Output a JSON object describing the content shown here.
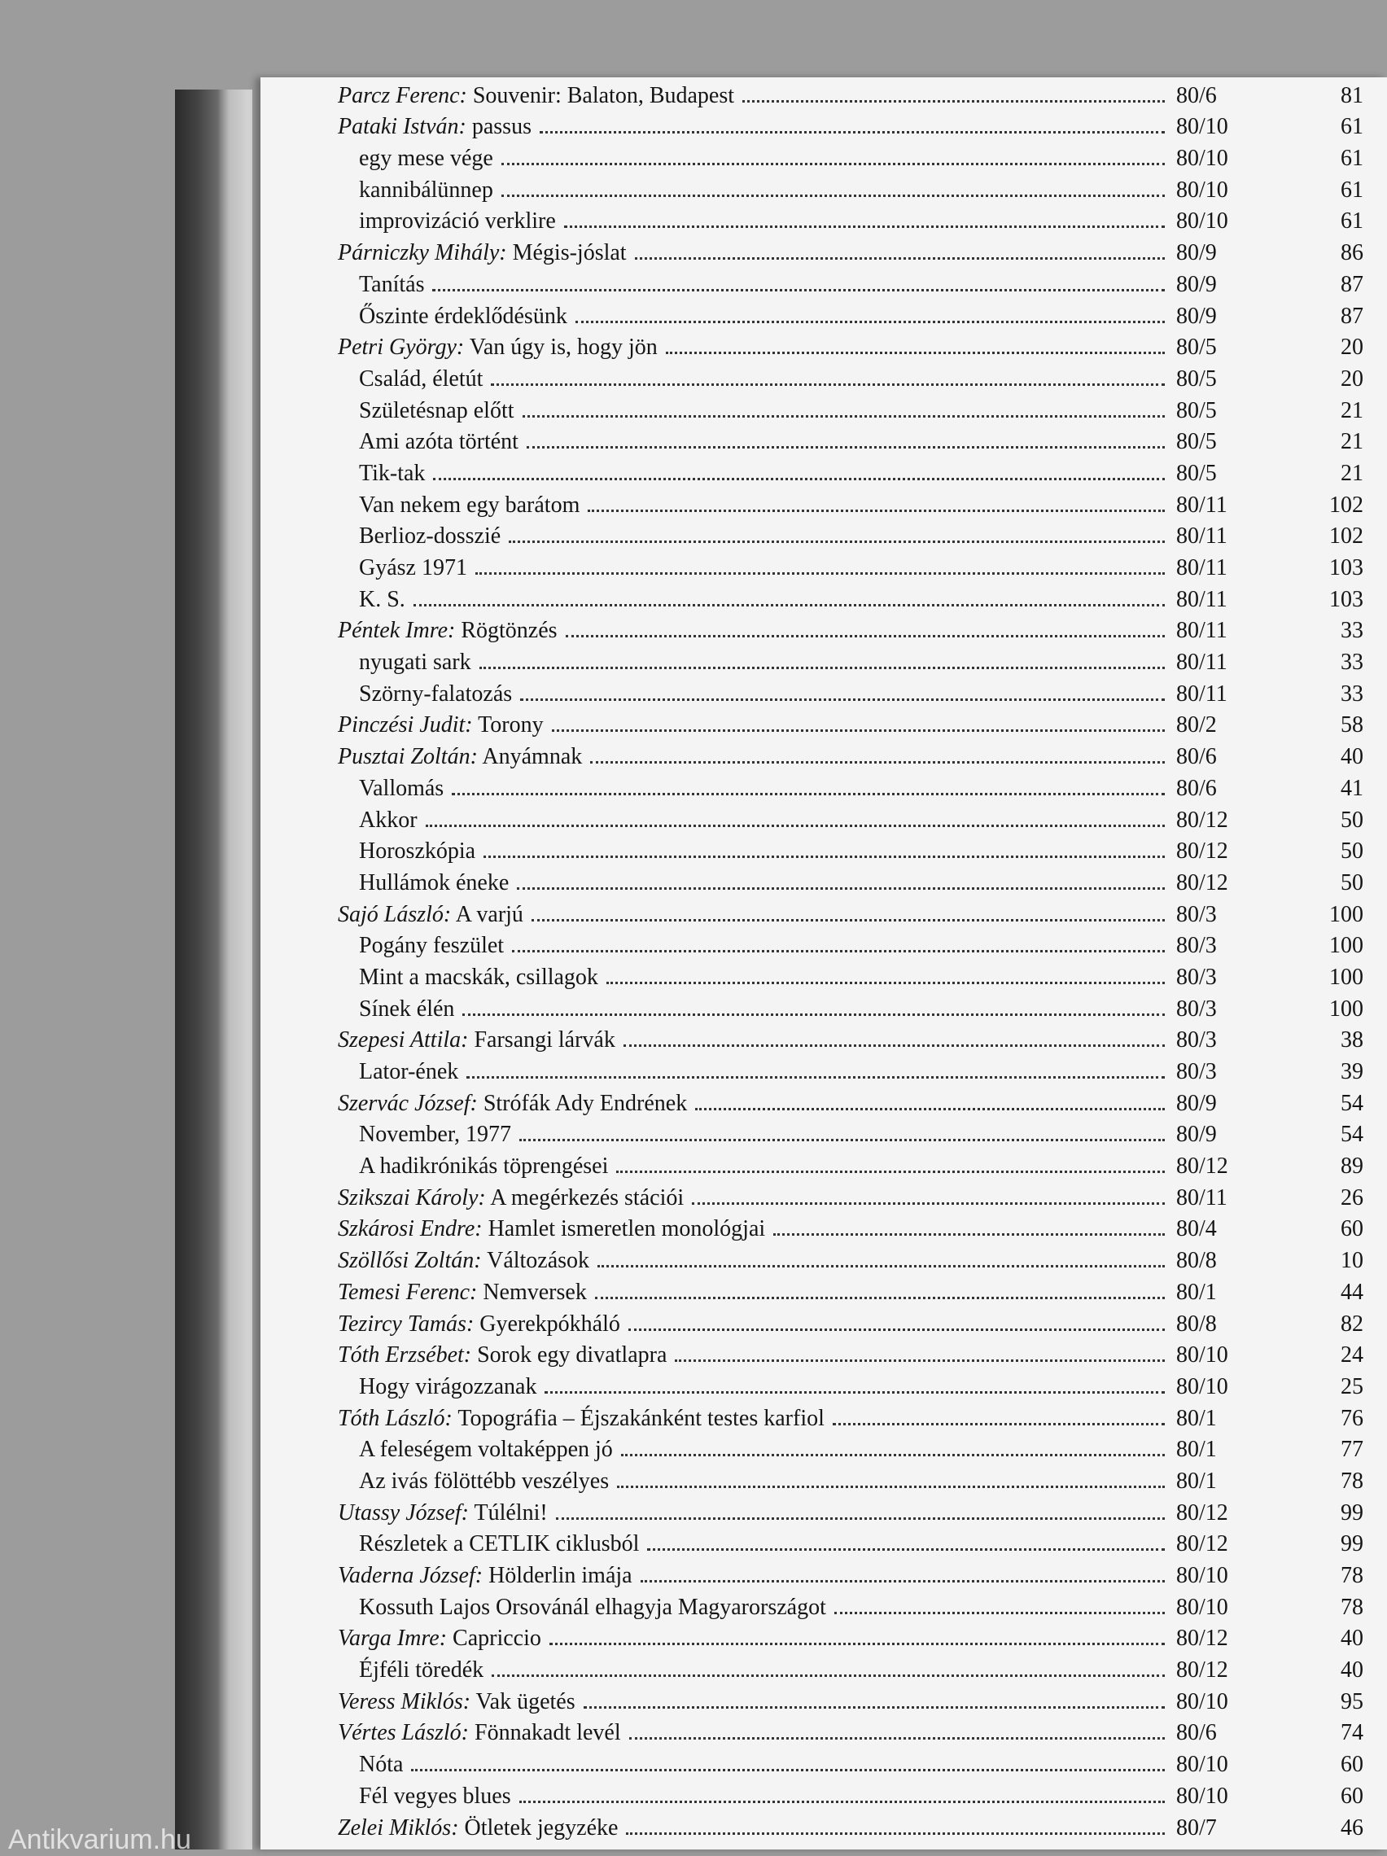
{
  "entries": [
    {
      "author": "Parcz Ferenc:",
      "title": "Souvenir: Balaton, Budapest",
      "issue": "80/6",
      "page": 81
    },
    {
      "author": "Pataki István:",
      "title": "passus",
      "issue": "80/10",
      "page": 61
    },
    {
      "title": "egy mese vége",
      "issue": "80/10",
      "page": 61
    },
    {
      "title": "kannibálünnep",
      "issue": "80/10",
      "page": 61
    },
    {
      "title": "improvizáció verklire",
      "issue": "80/10",
      "page": 61
    },
    {
      "author": "Párniczky Mihály:",
      "title": "Mégis-jóslat",
      "issue": "80/9",
      "page": 86
    },
    {
      "title": "Tanítás",
      "issue": "80/9",
      "page": 87
    },
    {
      "title": "Őszinte érdeklődésünk",
      "issue": "80/9",
      "page": 87
    },
    {
      "author": "Petri György:",
      "title": "Van úgy is, hogy jön",
      "issue": "80/5",
      "page": 20
    },
    {
      "title": "Család, életút",
      "issue": "80/5",
      "page": 20
    },
    {
      "title": "Születésnap előtt",
      "issue": "80/5",
      "page": 21
    },
    {
      "title": "Ami azóta történt",
      "issue": "80/5",
      "page": 21
    },
    {
      "title": "Tik-tak",
      "issue": "80/5",
      "page": 21
    },
    {
      "title": "Van nekem egy barátom",
      "issue": "80/11",
      "page": 102
    },
    {
      "title": "Berlioz-dosszié",
      "issue": "80/11",
      "page": 102
    },
    {
      "title": "Gyász 1971",
      "issue": "80/11",
      "page": 103
    },
    {
      "title": "K. S.",
      "issue": "80/11",
      "page": 103
    },
    {
      "author": "Péntek Imre:",
      "title": "Rögtönzés",
      "issue": "80/11",
      "page": 33
    },
    {
      "title": "nyugati sark",
      "issue": "80/11",
      "page": 33
    },
    {
      "title": "Szörny-falatozás",
      "issue": "80/11",
      "page": 33
    },
    {
      "author": "Pinczési Judit:",
      "title": "Torony",
      "issue": "80/2",
      "page": 58
    },
    {
      "author": "Pusztai Zoltán:",
      "title": "Anyámnak",
      "issue": "80/6",
      "page": 40
    },
    {
      "title": "Vallomás",
      "issue": "80/6",
      "page": 41
    },
    {
      "title": "Akkor",
      "issue": "80/12",
      "page": 50
    },
    {
      "title": "Horoszkópia",
      "issue": "80/12",
      "page": 50
    },
    {
      "title": "Hullámok éneke",
      "issue": "80/12",
      "page": 50
    },
    {
      "author": "Sajó László:",
      "title": "A varjú",
      "issue": "80/3",
      "page": 100
    },
    {
      "title": "Pogány feszület",
      "issue": "80/3",
      "page": 100
    },
    {
      "title": "Mint a macskák, csillagok",
      "issue": "80/3",
      "page": 100
    },
    {
      "title": "Sínek élén",
      "issue": "80/3",
      "page": 100
    },
    {
      "author": "Szepesi Attila:",
      "title": "Farsangi lárvák",
      "issue": "80/3",
      "page": 38
    },
    {
      "title": "Lator-ének",
      "issue": "80/3",
      "page": 39
    },
    {
      "author": "Szervác József:",
      "title": "Strófák Ady Endrének",
      "issue": "80/9",
      "page": 54
    },
    {
      "title": "November, 1977",
      "issue": "80/9",
      "page": 54
    },
    {
      "title": "A hadikrónikás töprengései",
      "issue": "80/12",
      "page": 89
    },
    {
      "author": "Szikszai Károly:",
      "title": "A megérkezés stációi",
      "issue": "80/11",
      "page": 26
    },
    {
      "author": "Szkárosi Endre:",
      "title": "Hamlet ismeretlen monológjai",
      "issue": "80/4",
      "page": 60
    },
    {
      "author": "Szöllősi Zoltán:",
      "title": "Változások",
      "issue": "80/8",
      "page": 10
    },
    {
      "author": "Temesi Ferenc:",
      "title": "Nemversek",
      "issue": "80/1",
      "page": 44
    },
    {
      "author": "Tezircy Tamás:",
      "title": "Gyerekpókháló",
      "issue": "80/8",
      "page": 82
    },
    {
      "author": "Tóth Erzsébet:",
      "title": "Sorok egy divatlapra",
      "issue": "80/10",
      "page": 24
    },
    {
      "title": "Hogy virágozzanak",
      "issue": "80/10",
      "page": 25
    },
    {
      "author": "Tóth László:",
      "title": "Topográfia – Éjszakánként testes karfiol",
      "issue": "80/1",
      "page": 76
    },
    {
      "title": "A feleségem voltaképpen jó",
      "issue": "80/1",
      "page": 77
    },
    {
      "title": "Az ivás fölöttébb veszélyes",
      "issue": "80/1",
      "page": 78
    },
    {
      "author": "Utassy József:",
      "title": "Túlélni!",
      "issue": "80/12",
      "page": 99
    },
    {
      "title": "Részletek a CETLIK ciklusból",
      "issue": "80/12",
      "page": 99
    },
    {
      "author": "Vaderna József:",
      "title": "Hölderlin imája",
      "issue": "80/10",
      "page": 78
    },
    {
      "title": "Kossuth Lajos Orsovánál elhagyja Magyarországot",
      "issue": "80/10",
      "page": 78
    },
    {
      "author": "Varga Imre:",
      "title": "Capriccio",
      "issue": "80/12",
      "page": 40
    },
    {
      "title": "Éjféli töredék",
      "issue": "80/12",
      "page": 40
    },
    {
      "author": "Veress Miklós:",
      "title": "Vak ügetés",
      "issue": "80/10",
      "page": 95
    },
    {
      "author": "Vértes László:",
      "title": "Fönnakadt levél",
      "issue": "80/6",
      "page": 74
    },
    {
      "title": "Nóta",
      "issue": "80/10",
      "page": 60
    },
    {
      "title": "Fél vegyes blues",
      "issue": "80/10",
      "page": 60
    },
    {
      "author": "Zelei Miklós:",
      "title": "Ötletek jegyzéke",
      "issue": "80/7",
      "page": 46
    }
  ],
  "watermark": "Antikvarium.hu"
}
